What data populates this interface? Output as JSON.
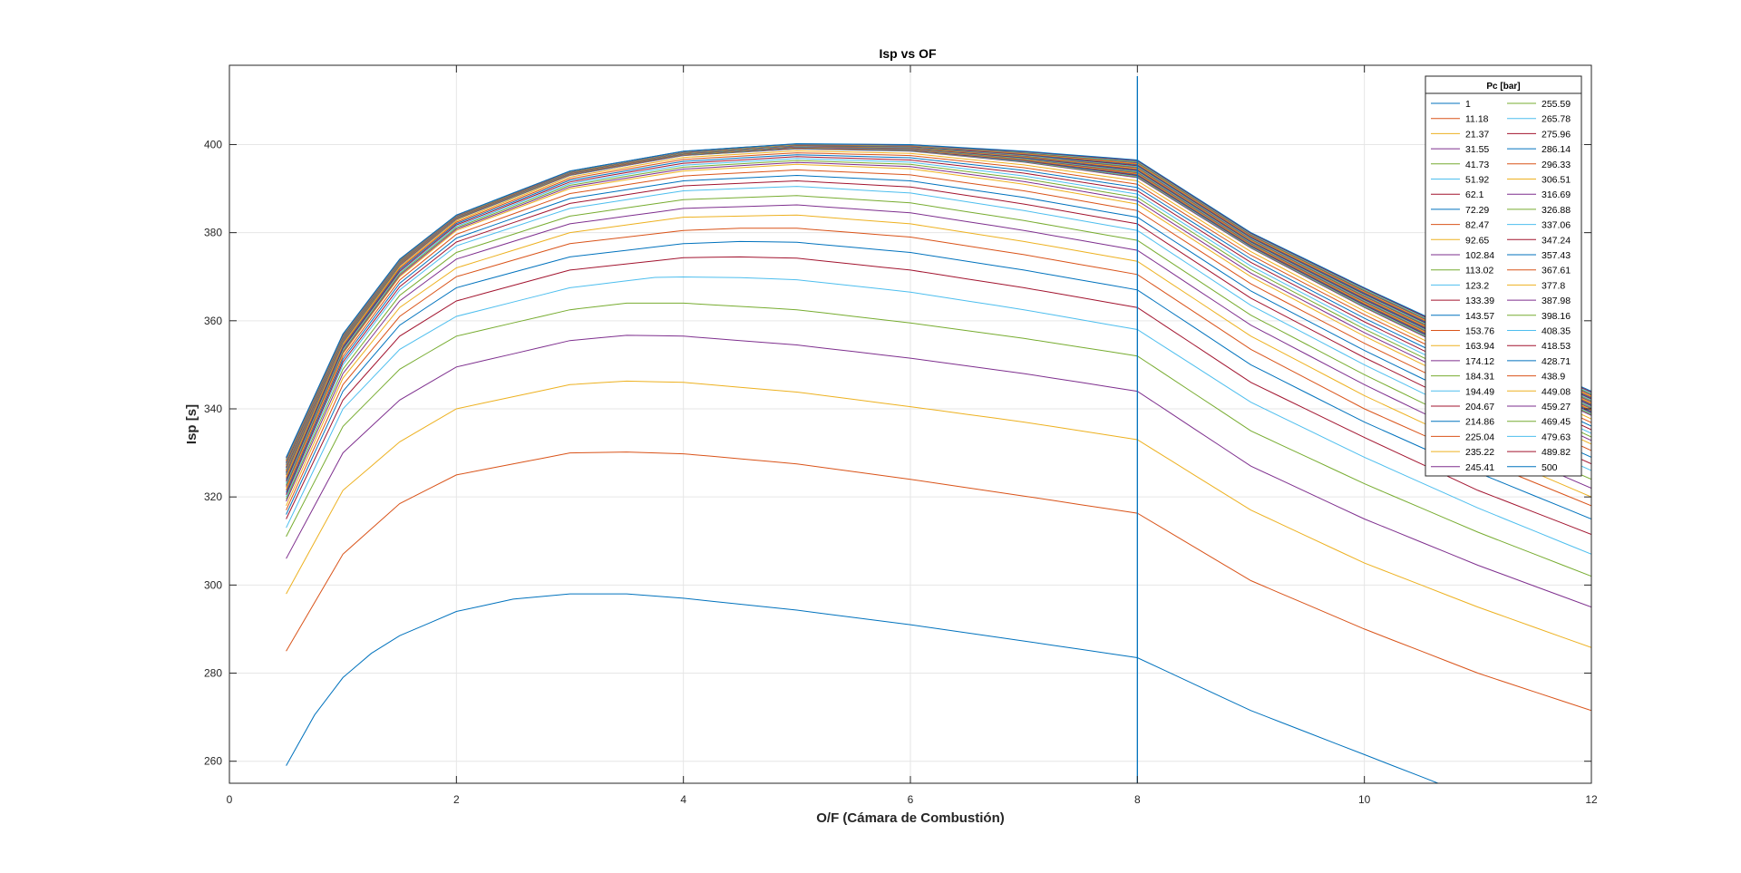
{
  "chart_data": {
    "type": "line",
    "title": "Isp vs OF",
    "xlabel": "O/F (Cámara de Combustión)",
    "ylabel": "Isp [s]",
    "xlim": [
      0,
      12
    ],
    "ylim": [
      255,
      418
    ],
    "xticks": [
      "0",
      "2",
      "4",
      "6",
      "8",
      "10",
      "12"
    ],
    "yticks": [
      "260",
      "280",
      "300",
      "320",
      "340",
      "360",
      "380",
      "400"
    ],
    "grid": true,
    "legend_title": "Pc [bar]",
    "legend_position": "top-right",
    "legend_columns": 2,
    "vertical_marker_x": 8,
    "x_start": 0.5,
    "series_pressures": [
      "1",
      "11.18",
      "21.37",
      "31.55",
      "41.73",
      "51.92",
      "62.1",
      "72.29",
      "82.47",
      "92.65",
      "102.84",
      "113.02",
      "123.2",
      "133.39",
      "143.57",
      "153.76",
      "163.94",
      "174.12",
      "184.31",
      "194.49",
      "204.67",
      "214.86",
      "225.04",
      "235.22",
      "245.41",
      "255.59",
      "265.78",
      "275.96",
      "286.14",
      "296.33",
      "306.51",
      "316.69",
      "326.88",
      "337.06",
      "347.24",
      "357.43",
      "367.61",
      "377.8",
      "387.98",
      "398.16",
      "408.35",
      "418.53",
      "428.71",
      "438.9",
      "449.08",
      "459.27",
      "469.45",
      "479.63",
      "489.82",
      "500"
    ],
    "sample_series": [
      {
        "pc": "1",
        "points": [
          [
            0.5,
            259
          ],
          [
            0.75,
            270.5
          ],
          [
            1.0,
            279
          ],
          [
            1.25,
            284.5
          ],
          [
            1.5,
            288.5
          ],
          [
            2.0,
            294
          ],
          [
            2.5,
            296.8
          ],
          [
            3.0,
            298.0
          ],
          [
            3.5,
            298.0
          ],
          [
            4.0,
            297.0
          ],
          [
            5.0,
            294.3
          ],
          [
            6.0,
            291.0
          ],
          [
            7.0,
            287.3
          ],
          [
            8.0,
            283.5
          ],
          [
            9.0,
            271.5
          ],
          [
            10.0,
            261.5
          ],
          [
            10.6,
            255.5
          ]
        ]
      },
      {
        "pc": "11.18",
        "points": [
          [
            0.5,
            285
          ],
          [
            1.0,
            307
          ],
          [
            1.5,
            318.5
          ],
          [
            2.0,
            325
          ],
          [
            3.0,
            330
          ],
          [
            3.5,
            330.2
          ],
          [
            4.0,
            329.8
          ],
          [
            5.0,
            327.5
          ],
          [
            6.0,
            324
          ],
          [
            7.0,
            320.2
          ],
          [
            8.0,
            316.3
          ],
          [
            9.0,
            301.0
          ],
          [
            10.0,
            290.0
          ],
          [
            11.0,
            280.0
          ],
          [
            12.0,
            271.5
          ]
        ]
      },
      {
        "pc": "21.37",
        "points": [
          [
            0.5,
            298
          ],
          [
            1.0,
            321.5
          ],
          [
            1.5,
            332.5
          ],
          [
            2.0,
            340
          ],
          [
            3.0,
            345.5
          ],
          [
            3.5,
            346.3
          ],
          [
            4.0,
            346.0
          ],
          [
            5.0,
            343.8
          ],
          [
            6.0,
            340.5
          ],
          [
            7.0,
            337.0
          ],
          [
            8.0,
            333.0
          ],
          [
            9.0,
            317.0
          ],
          [
            10.0,
            305.0
          ],
          [
            11.0,
            295.0
          ],
          [
            12.0,
            285.8
          ]
        ]
      },
      {
        "pc": "31.55",
        "points": [
          [
            0.5,
            306
          ],
          [
            1.0,
            330
          ],
          [
            1.5,
            342
          ],
          [
            2.0,
            349.5
          ],
          [
            3.0,
            355.5
          ],
          [
            3.5,
            356.7
          ],
          [
            4.0,
            356.5
          ],
          [
            5.0,
            354.5
          ],
          [
            6.0,
            351.5
          ],
          [
            7.0,
            348.0
          ],
          [
            8.0,
            344.0
          ],
          [
            9.0,
            327.0
          ],
          [
            10.0,
            315.0
          ],
          [
            11.0,
            304.5
          ],
          [
            12.0,
            295.0
          ]
        ]
      },
      {
        "pc": "41.73",
        "points": [
          [
            0.5,
            311
          ],
          [
            1.0,
            336
          ],
          [
            1.5,
            349
          ],
          [
            2.0,
            356.5
          ],
          [
            3.0,
            362.5
          ],
          [
            3.5,
            364.0
          ],
          [
            4.0,
            364.0
          ],
          [
            5.0,
            362.5
          ],
          [
            6.0,
            359.5
          ],
          [
            7.0,
            356.0
          ],
          [
            8.0,
            352.0
          ],
          [
            9.0,
            335.0
          ],
          [
            10.0,
            323.0
          ],
          [
            11.0,
            312.0
          ],
          [
            12.0,
            302.0
          ]
        ]
      },
      {
        "pc": "51.92",
        "points": [
          [
            0.5,
            313
          ],
          [
            1.0,
            340
          ],
          [
            1.5,
            353.5
          ],
          [
            2.0,
            361
          ],
          [
            3.0,
            367.5
          ],
          [
            3.8,
            370.0
          ],
          [
            4.5,
            369.8
          ],
          [
            5.0,
            369.3
          ],
          [
            6.0,
            366.5
          ],
          [
            7.0,
            362.5
          ],
          [
            8.0,
            358.0
          ],
          [
            9.0,
            341.5
          ],
          [
            10.0,
            329.0
          ],
          [
            11.0,
            317.5
          ],
          [
            12.0,
            307.0
          ]
        ]
      },
      {
        "pc": "62.1",
        "points": [
          [
            0.5,
            315
          ],
          [
            1.0,
            342
          ],
          [
            1.5,
            356.5
          ],
          [
            2.0,
            364.5
          ],
          [
            3.0,
            371.5
          ],
          [
            4.0,
            374.3
          ],
          [
            4.5,
            374.5
          ],
          [
            5.0,
            374.2
          ],
          [
            6.0,
            371.5
          ],
          [
            7.0,
            367.5
          ],
          [
            8.0,
            363.0
          ],
          [
            9.0,
            346.0
          ],
          [
            10.0,
            333.5
          ],
          [
            11.0,
            321.5
          ],
          [
            12.0,
            311.5
          ]
        ]
      },
      {
        "pc": "72.29",
        "points": [
          [
            0.5,
            316
          ],
          [
            1.0,
            344
          ],
          [
            1.5,
            359
          ],
          [
            2.0,
            367.5
          ],
          [
            3.0,
            374.5
          ],
          [
            4.0,
            377.5
          ],
          [
            4.5,
            378.0
          ],
          [
            5.0,
            377.8
          ],
          [
            6.0,
            375.5
          ],
          [
            7.0,
            371.5
          ],
          [
            8.0,
            367.0
          ],
          [
            9.0,
            350.0
          ],
          [
            10.0,
            337.0
          ],
          [
            11.0,
            325.5
          ],
          [
            12.0,
            315.0
          ]
        ]
      },
      {
        "pc": "82.47",
        "points": [
          [
            0.5,
            317
          ],
          [
            1.0,
            345.5
          ],
          [
            1.5,
            361
          ],
          [
            2.0,
            370
          ],
          [
            3.0,
            377.5
          ],
          [
            4.0,
            380.5
          ],
          [
            4.5,
            381.0
          ],
          [
            5.0,
            381.0
          ],
          [
            6.0,
            379.0
          ],
          [
            7.0,
            375.0
          ],
          [
            8.0,
            370.5
          ],
          [
            9.0,
            353.5
          ],
          [
            10.0,
            340.0
          ],
          [
            11.0,
            328.5
          ],
          [
            12.0,
            318.0
          ]
        ]
      },
      {
        "pc": "92.65",
        "points": [
          [
            0.5,
            318
          ],
          [
            1.0,
            347
          ],
          [
            1.5,
            363
          ],
          [
            2.0,
            372
          ],
          [
            3.0,
            380
          ],
          [
            4.0,
            383.5
          ],
          [
            5.0,
            384.0
          ],
          [
            6.0,
            382.0
          ],
          [
            7.0,
            378.0
          ],
          [
            8.0,
            373.5
          ],
          [
            9.0,
            356.5
          ],
          [
            10.0,
            343.0
          ],
          [
            11.0,
            331.0
          ],
          [
            12.0,
            320.0
          ]
        ]
      },
      {
        "pc": "102.84",
        "points": [
          [
            0.5,
            319
          ],
          [
            1.0,
            348
          ],
          [
            1.5,
            364.5
          ],
          [
            2.0,
            374
          ],
          [
            3.0,
            382
          ],
          [
            4.0,
            385.5
          ],
          [
            5.0,
            386.3
          ],
          [
            6.0,
            384.5
          ],
          [
            7.0,
            380.5
          ],
          [
            8.0,
            376.0
          ],
          [
            9.0,
            359.0
          ],
          [
            10.0,
            345.5
          ],
          [
            11.0,
            333.0
          ],
          [
            12.0,
            322.0
          ]
        ]
      },
      {
        "pc": "123.2",
        "points": [
          [
            0.5,
            320
          ],
          [
            1.0,
            350
          ],
          [
            1.5,
            367
          ],
          [
            2.0,
            377
          ],
          [
            3.0,
            385.5
          ],
          [
            4.0,
            389.5
          ],
          [
            5.0,
            390.5
          ],
          [
            6.0,
            389.0
          ],
          [
            7.0,
            385.0
          ],
          [
            8.0,
            380.5
          ],
          [
            9.0,
            363.5
          ],
          [
            10.0,
            350.0
          ],
          [
            11.0,
            337.5
          ],
          [
            12.0,
            326.0
          ]
        ]
      },
      {
        "pc": "163.94",
        "points": [
          [
            0.5,
            322
          ],
          [
            1.0,
            352.5
          ],
          [
            1.5,
            370
          ],
          [
            2.0,
            380.5
          ],
          [
            3.0,
            390
          ],
          [
            4.0,
            394.0
          ],
          [
            5.0,
            395.5
          ],
          [
            6.0,
            394.5
          ],
          [
            7.0,
            391.0
          ],
          [
            8.0,
            386.5
          ],
          [
            9.0,
            370.0
          ],
          [
            10.0,
            356.5
          ],
          [
            11.0,
            344.0
          ],
          [
            12.0,
            332.0
          ]
        ]
      },
      {
        "pc": "245.41",
        "points": [
          [
            0.5,
            325
          ],
          [
            1.0,
            355
          ],
          [
            1.5,
            372.5
          ],
          [
            2.0,
            383
          ],
          [
            3.0,
            393
          ],
          [
            4.0,
            397.5
          ],
          [
            5.0,
            399.0
          ],
          [
            6.0,
            398.5
          ],
          [
            7.0,
            396.0
          ],
          [
            8.0,
            392.5
          ],
          [
            9.0,
            376.5
          ],
          [
            10.0,
            363.0
          ],
          [
            11.0,
            350.5
          ],
          [
            12.0,
            338.5
          ]
        ]
      },
      {
        "pc": "500",
        "points": [
          [
            0.5,
            329
          ],
          [
            1.0,
            357
          ],
          [
            1.5,
            374
          ],
          [
            2.0,
            384
          ],
          [
            3.0,
            394
          ],
          [
            4.0,
            398.5
          ],
          [
            5.0,
            400.2
          ],
          [
            6.0,
            400.0
          ],
          [
            7.0,
            398.5
          ],
          [
            8.0,
            396.5
          ],
          [
            9.0,
            380.0
          ],
          [
            10.0,
            367.5
          ],
          [
            11.0,
            355.5
          ],
          [
            12.0,
            344.0
          ]
        ]
      }
    ]
  }
}
